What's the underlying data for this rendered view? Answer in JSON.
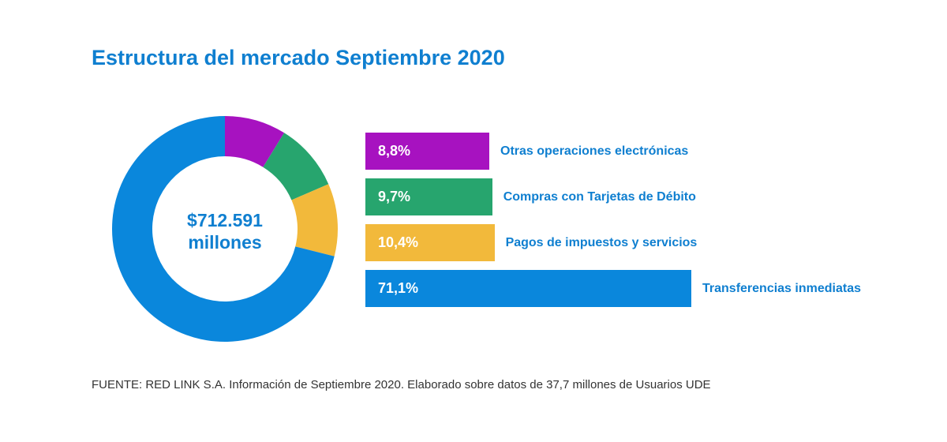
{
  "chart_data": {
    "type": "pie",
    "title": "Estructura del mercado Septiembre 2020",
    "center_label": [
      "$712.591",
      "millones"
    ],
    "series": [
      {
        "name": "Otras operaciones electrónicas",
        "value": 8.8,
        "label": "8,8%",
        "color": "#a712c0"
      },
      {
        "name": "Compras con Tarjetas de Débito",
        "value": 9.7,
        "label": "9,7%",
        "color": "#27a56e"
      },
      {
        "name": "Pagos de impuestos y servicios",
        "value": 10.4,
        "label": "10,4%",
        "color": "#f2b93b"
      },
      {
        "name": "Transferencias inmediatas",
        "value": 71.1,
        "label": "71,1%",
        "color": "#0a87dc"
      }
    ],
    "source": "FUENTE: RED LINK S.A. Información de Septiembre 2020. Elaborado sobre datos de 37,7 millones de Usuarios UDE"
  }
}
